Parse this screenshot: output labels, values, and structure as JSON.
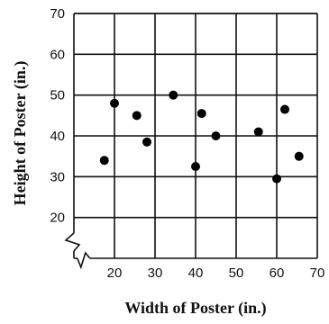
{
  "chart_data": {
    "type": "scatter",
    "xlabel": "Width of Poster (in.)",
    "ylabel": "Height of Poster (in.)",
    "xlim": [
      10,
      70
    ],
    "ylim": [
      10,
      70
    ],
    "x_ticks": [
      "20",
      "30",
      "40",
      "50",
      "60",
      "70"
    ],
    "y_ticks": [
      "20",
      "30",
      "40",
      "50",
      "60",
      "70"
    ],
    "grid": true,
    "axis_break": "both",
    "points": [
      {
        "x": 17.5,
        "y": 34
      },
      {
        "x": 20,
        "y": 48
      },
      {
        "x": 25.5,
        "y": 45
      },
      {
        "x": 28,
        "y": 38.5
      },
      {
        "x": 34.5,
        "y": 50
      },
      {
        "x": 40,
        "y": 32.5
      },
      {
        "x": 41.5,
        "y": 45.5
      },
      {
        "x": 45,
        "y": 40
      },
      {
        "x": 55.5,
        "y": 41
      },
      {
        "x": 60,
        "y": 29.5
      },
      {
        "x": 62,
        "y": 46.5
      },
      {
        "x": 65.5,
        "y": 35
      }
    ],
    "colors": {
      "point": "#000000",
      "grid": "#111111"
    }
  }
}
